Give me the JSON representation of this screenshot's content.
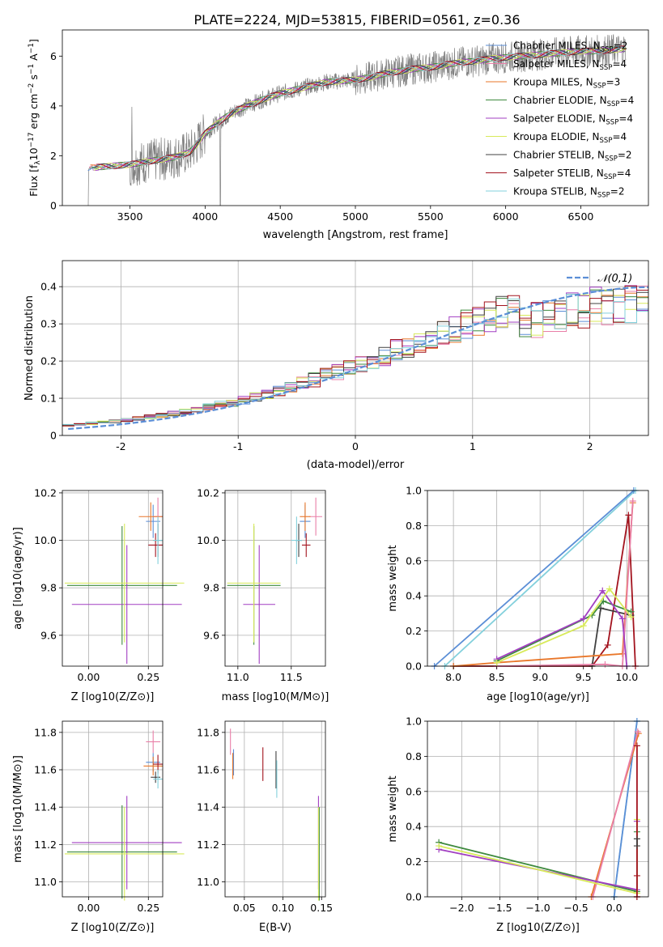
{
  "figure": {
    "title": "PLATE=2224, MJD=53815, FIBERID=0561, z=0.36",
    "label_colors": {
      "Chabrier MILES": "#5b8ed6",
      "Salpeter MILES": "#e97fa8",
      "Kroupa MILES": "#e9772a",
      "Chabrier ELODIE": "#3f8a3f",
      "Salpeter ELODIE": "#a23fc2",
      "Kroupa ELODIE": "#d8ea5a",
      "Chabrier STELIB": "#404040",
      "Salpeter STELIB": "#a3131e",
      "Kroupa STELIB": "#83d0dc",
      "data": "#808080",
      "normal": "#5b8ed6"
    }
  },
  "chart_data": [
    {
      "id": "spectrum",
      "type": "line",
      "title": "PLATE=2224, MJD=53815, FIBERID=0561, z=0.36",
      "xlabel": "wavelength [Angstrom, rest frame]",
      "ylabel": "Flux [f_λ 10^-17 erg cm^-2 s^-1 A^-1]",
      "xlim": [
        3050,
        6950
      ],
      "ylim": [
        0,
        7.05
      ],
      "xticks": [
        3500,
        4000,
        4500,
        5000,
        5500,
        6000,
        6500
      ],
      "yticks": [
        0,
        2,
        4,
        6
      ],
      "grid": false,
      "legend_position": "upper right",
      "legend": [
        {
          "name": "Chabrier MILES",
          "sup": "SSP",
          "n": "2",
          "color": "#5b8ed6"
        },
        {
          "name": "Salpeter MILES",
          "sup": "SSP",
          "n": "4",
          "color": "#e97fa8"
        },
        {
          "name": "Kroupa MILES",
          "sup": "SSP",
          "n": "3",
          "color": "#e9772a"
        },
        {
          "name": "Chabrier ELODIE",
          "sup": "SSP",
          "n": "4",
          "color": "#3f8a3f"
        },
        {
          "name": "Salpeter ELODIE",
          "sup": "SSP",
          "n": "4",
          "color": "#a23fc2"
        },
        {
          "name": "Kroupa ELODIE",
          "sup": "SSP",
          "n": "4",
          "color": "#d8ea5a"
        },
        {
          "name": "Chabrier STELIB",
          "sup": "SSP",
          "n": "2",
          "color": "#404040"
        },
        {
          "name": "Salpeter STELIB",
          "sup": "SSP",
          "n": "4",
          "color": "#a3131e"
        },
        {
          "name": "Kroupa STELIB",
          "sup": "SSP",
          "n": "2",
          "color": "#83d0dc"
        }
      ],
      "continuum": {
        "x": [
          3220,
          3300,
          3400,
          3500,
          3600,
          3700,
          3800,
          3900,
          3950,
          4000,
          4100,
          4200,
          4300,
          4400,
          4500,
          4600,
          4700,
          4800,
          4900,
          5000,
          5100,
          5200,
          5300,
          5400,
          5500,
          5600,
          5700,
          5800,
          5900,
          6000,
          6100,
          6200,
          6300,
          6400,
          6500,
          6600,
          6700,
          6800
        ],
        "y": [
          1.5,
          1.55,
          1.6,
          1.65,
          1.75,
          1.85,
          1.95,
          2.15,
          2.5,
          2.9,
          3.4,
          3.8,
          4.05,
          4.3,
          4.5,
          4.65,
          4.8,
          4.95,
          5.0,
          5.05,
          5.15,
          5.3,
          5.4,
          5.5,
          5.55,
          5.65,
          5.75,
          5.8,
          5.9,
          5.95,
          6.0,
          6.05,
          6.1,
          6.15,
          6.2,
          6.2,
          6.25,
          6.3
        ]
      }
    },
    {
      "id": "residuals",
      "type": "histogram",
      "xlabel": "(data-model)/error",
      "ylabel": "Normed distribution",
      "xlim": [
        -2.5,
        2.5
      ],
      "ylim": [
        0,
        0.47
      ],
      "xticks": [
        -2,
        -1,
        0,
        1,
        2
      ],
      "yticks": [
        0.0,
        0.1,
        0.2,
        0.3,
        0.4
      ],
      "grid": true,
      "legend_position": "upper right",
      "legend": [
        {
          "name": "𝒩(0,1)",
          "color": "#5b8ed6",
          "style": "dashed"
        }
      ],
      "bin_width": 0.1,
      "bin_start": -2.5,
      "reference": [
        0.0175,
        0.0198,
        0.0224,
        0.0252,
        0.0283,
        0.0317,
        0.0355,
        0.0396,
        0.044,
        0.0488,
        0.054,
        0.0596,
        0.0656,
        0.0721,
        0.0789,
        0.0863,
        0.094,
        0.1023,
        0.1109,
        0.12,
        0.1295,
        0.1394,
        0.1497,
        0.1604,
        0.1714,
        0.1826,
        0.1942,
        0.2059,
        0.2179,
        0.2299,
        0.242,
        0.2541,
        0.2661,
        0.278,
        0.2897,
        0.3011,
        0.3123,
        0.3229,
        0.3332,
        0.3429,
        0.3521,
        0.3605,
        0.3683,
        0.3753,
        0.3814,
        0.3867,
        0.391,
        0.3945,
        0.397,
        0.3984,
        0.3984,
        0.397,
        0.3945,
        0.391,
        0.3867,
        0.3814,
        0.3753,
        0.3683,
        0.3605,
        0.3521,
        0.3429,
        0.3332,
        0.3229,
        0.3123,
        0.3011,
        0.2897,
        0.278,
        0.2661,
        0.2541,
        0.242,
        0.2299,
        0.2179,
        0.2059,
        0.1942,
        0.1826,
        0.1714,
        0.1604,
        0.1497,
        0.1394,
        0.1295,
        0.12,
        0.1109,
        0.1023,
        0.094,
        0.0863,
        0.0789,
        0.0721,
        0.0656,
        0.0596,
        0.054,
        0.0488,
        0.044,
        0.0396,
        0.0355,
        0.0317,
        0.0283,
        0.0252,
        0.0224,
        0.0198,
        0.0175
      ]
    },
    {
      "id": "age-vs-Z",
      "type": "scatter",
      "xlabel": "Z [log10(Z/Z⊙)]",
      "ylabel": "age [log10(age/yr)]",
      "xlim": [
        -0.11,
        0.31
      ],
      "ylim": [
        9.47,
        10.21
      ],
      "xticks": [
        "0.00",
        "0.25"
      ],
      "yticks": [
        "9.6",
        "9.8",
        "10.0",
        "10.2"
      ],
      "grid": true,
      "points": [
        {
          "color": "#5b8ed6",
          "x": 0.27,
          "y": 10.08,
          "xerr": 0.03,
          "yerr": 0.07
        },
        {
          "color": "#e97fa8",
          "x": 0.29,
          "y": 10.1,
          "xerr": 0.02,
          "yerr": 0.08
        },
        {
          "color": "#e9772a",
          "x": 0.26,
          "y": 10.1,
          "xerr": 0.05,
          "yerr": 0.06
        },
        {
          "color": "#3f8a3f",
          "x": 0.14,
          "y": 9.81,
          "xerr": 0.23,
          "yerr": 0.25
        },
        {
          "color": "#a23fc2",
          "x": 0.16,
          "y": 9.73,
          "xerr": 0.23,
          "yerr": 0.25
        },
        {
          "color": "#d8ea5a",
          "x": 0.15,
          "y": 9.82,
          "xerr": 0.25,
          "yerr": 0.25
        },
        {
          "color": "#404040",
          "x": 0.29,
          "y": 10.0,
          "xerr": 0.02,
          "yerr": 0.07
        },
        {
          "color": "#a3131e",
          "x": 0.28,
          "y": 9.98,
          "xerr": 0.03,
          "yerr": 0.05
        },
        {
          "color": "#83d0dc",
          "x": 0.29,
          "y": 10.0,
          "xerr": 0.02,
          "yerr": 0.1
        }
      ]
    },
    {
      "id": "age-vs-mass",
      "type": "scatter",
      "xlabel": "mass [log10(M/M⊙)]",
      "ylabel": "",
      "xlim": [
        10.88,
        11.82
      ],
      "ylim": [
        9.47,
        10.21
      ],
      "xticks": [
        "11.0",
        "11.5"
      ],
      "yticks": [
        "9.6",
        "9.8",
        "10.0",
        "10.2"
      ],
      "grid": true,
      "points": [
        {
          "color": "#5b8ed6",
          "x": 11.63,
          "y": 10.08,
          "xerr": 0.05,
          "yerr": 0.07
        },
        {
          "color": "#e97fa8",
          "x": 11.73,
          "y": 10.1,
          "xerr": 0.06,
          "yerr": 0.08
        },
        {
          "color": "#e9772a",
          "x": 11.63,
          "y": 10.1,
          "xerr": 0.05,
          "yerr": 0.06
        },
        {
          "color": "#3f8a3f",
          "x": 11.15,
          "y": 9.81,
          "xerr": 0.25,
          "yerr": 0.25
        },
        {
          "color": "#a23fc2",
          "x": 11.2,
          "y": 9.73,
          "xerr": 0.15,
          "yerr": 0.25
        },
        {
          "color": "#d8ea5a",
          "x": 11.15,
          "y": 9.82,
          "xerr": 0.25,
          "yerr": 0.25
        },
        {
          "color": "#404040",
          "x": 11.57,
          "y": 10.0,
          "xerr": 0.03,
          "yerr": 0.07
        },
        {
          "color": "#a3131e",
          "x": 11.64,
          "y": 9.98,
          "xerr": 0.04,
          "yerr": 0.05
        },
        {
          "color": "#83d0dc",
          "x": 11.55,
          "y": 10.0,
          "xerr": 0.05,
          "yerr": 0.1
        }
      ]
    },
    {
      "id": "weight-vs-age",
      "type": "line",
      "xlabel": "age [log10(age/yr)]",
      "ylabel": "mass weight",
      "xlim": [
        7.7,
        10.25
      ],
      "ylim": [
        0,
        1.0
      ],
      "xticks": [
        "8.0",
        "8.5",
        "9.0",
        "9.5",
        "10.0"
      ],
      "yticks": [
        "0.0",
        "0.2",
        "0.4",
        "0.6",
        "0.8",
        "1.0"
      ],
      "grid": true,
      "series": [
        {
          "color": "#83d0dc",
          "x": [
            7.9,
            10.1
          ],
          "y": [
            0.0,
            1.0
          ]
        },
        {
          "color": "#5b8ed6",
          "x": [
            7.78,
            10.08
          ],
          "y": [
            0.0,
            1.0
          ]
        },
        {
          "color": "#a3131e",
          "x": [
            8.0,
            9.6,
            9.78,
            10.02,
            10.1
          ],
          "y": [
            0.0,
            0.0,
            0.12,
            0.86,
            0.0
          ]
        },
        {
          "color": "#404040",
          "x": [
            9.6,
            9.7,
            10.05
          ],
          "y": [
            0.0,
            0.33,
            0.29
          ]
        },
        {
          "color": "#e9772a",
          "x": [
            8.0,
            8.5,
            9.95,
            10.07
          ],
          "y": [
            0.0,
            0.02,
            0.07,
            0.93
          ]
        },
        {
          "color": "#e97fa8",
          "x": [
            8.5,
            9.75,
            9.95,
            10.07
          ],
          "y": [
            0.0,
            0.01,
            0.0,
            0.94
          ]
        },
        {
          "color": "#3f8a3f",
          "x": [
            8.5,
            9.6,
            9.73,
            10.05
          ],
          "y": [
            0.03,
            0.29,
            0.37,
            0.31
          ]
        },
        {
          "color": "#a23fc2",
          "x": [
            8.5,
            9.5,
            9.72,
            9.95,
            10.0
          ],
          "y": [
            0.04,
            0.27,
            0.43,
            0.27,
            0.0
          ]
        },
        {
          "color": "#d8ea5a",
          "x": [
            8.5,
            9.5,
            9.8,
            10.05
          ],
          "y": [
            0.02,
            0.23,
            0.44,
            0.28
          ]
        }
      ]
    },
    {
      "id": "mass-vs-Z",
      "type": "scatter",
      "xlabel": "Z [log10(Z/Z⊙)]",
      "ylabel": "mass [log10(M/M⊙)]",
      "xlim": [
        -0.11,
        0.31
      ],
      "ylim": [
        10.92,
        11.86
      ],
      "xticks": [
        "0.00",
        "0.25"
      ],
      "yticks": [
        "11.0",
        "11.2",
        "11.4",
        "11.6",
        "11.8"
      ],
      "grid": true,
      "points": [
        {
          "color": "#5b8ed6",
          "x": 0.27,
          "y": 11.64,
          "xerr": 0.03,
          "yerr": 0.05
        },
        {
          "color": "#e97fa8",
          "x": 0.27,
          "y": 11.75,
          "xerr": 0.03,
          "yerr": 0.06
        },
        {
          "color": "#e9772a",
          "x": 0.27,
          "y": 11.62,
          "xerr": 0.04,
          "yerr": 0.05
        },
        {
          "color": "#3f8a3f",
          "x": 0.14,
          "y": 11.16,
          "xerr": 0.23,
          "yerr": 0.25
        },
        {
          "color": "#a23fc2",
          "x": 0.16,
          "y": 11.21,
          "xerr": 0.23,
          "yerr": 0.25
        },
        {
          "color": "#d8ea5a",
          "x": 0.15,
          "y": 11.15,
          "xerr": 0.25,
          "yerr": 0.25
        },
        {
          "color": "#404040",
          "x": 0.28,
          "y": 11.56,
          "xerr": 0.02,
          "yerr": 0.03
        },
        {
          "color": "#a3131e",
          "x": 0.29,
          "y": 11.63,
          "xerr": 0.02,
          "yerr": 0.05
        },
        {
          "color": "#83d0dc",
          "x": 0.29,
          "y": 11.55,
          "xerr": 0.02,
          "yerr": 0.05
        }
      ]
    },
    {
      "id": "mass-vs-EBV",
      "type": "scatter",
      "xlabel": "E(B-V)",
      "ylabel": "",
      "xlim": [
        0.025,
        0.155
      ],
      "ylim": [
        10.92,
        11.86
      ],
      "xticks": [
        "0.05",
        "0.10",
        "0.15"
      ],
      "yticks": [
        "11.0",
        "11.2",
        "11.4",
        "11.6",
        "11.8"
      ],
      "grid": true,
      "points": [
        {
          "color": "#5b8ed6",
          "x": 0.036,
          "y": 11.64,
          "xerr": 0.0,
          "yerr": 0.07
        },
        {
          "color": "#e97fa8",
          "x": 0.032,
          "y": 11.75,
          "xerr": 0.0,
          "yerr": 0.07
        },
        {
          "color": "#e9772a",
          "x": 0.035,
          "y": 11.62,
          "xerr": 0.0,
          "yerr": 0.07
        },
        {
          "color": "#3f8a3f",
          "x": 0.147,
          "y": 11.15,
          "xerr": 0.0,
          "yerr": 0.25
        },
        {
          "color": "#a23fc2",
          "x": 0.146,
          "y": 11.21,
          "xerr": 0.0,
          "yerr": 0.25
        },
        {
          "color": "#d8ea5a",
          "x": 0.146,
          "y": 11.15,
          "xerr": 0.0,
          "yerr": 0.25
        },
        {
          "color": "#404040",
          "x": 0.091,
          "y": 11.6,
          "xerr": 0.0,
          "yerr": 0.1
        },
        {
          "color": "#a3131e",
          "x": 0.074,
          "y": 11.63,
          "xerr": 0.0,
          "yerr": 0.09
        },
        {
          "color": "#83d0dc",
          "x": 0.092,
          "y": 11.55,
          "xerr": 0.0,
          "yerr": 0.1
        }
      ]
    },
    {
      "id": "weight-vs-Z",
      "type": "line",
      "xlabel": "Z [log10(Z/Z⊙)]",
      "ylabel": "mass weight",
      "xlim": [
        -2.45,
        0.45
      ],
      "ylim": [
        0,
        1.0
      ],
      "xticks": [
        "−2.0",
        "−1.5",
        "−1.0",
        "−0.5",
        "0.0"
      ],
      "yticks": [
        "0.0",
        "0.2",
        "0.4",
        "0.6",
        "0.8",
        "1.0"
      ],
      "grid": true,
      "series": [
        {
          "color": "#83d0dc",
          "x": [
            0.0,
            0.3
          ],
          "y": [
            0.0,
            1.0
          ]
        },
        {
          "color": "#5b8ed6",
          "x": [
            0.0,
            0.3
          ],
          "y": [
            0.0,
            1.0
          ]
        },
        {
          "color": "#e9772a",
          "x": [
            -0.3,
            0.32
          ],
          "y": [
            0.0,
            0.93
          ]
        },
        {
          "color": "#e97fa8",
          "x": [
            -0.28,
            0.31
          ],
          "y": [
            0.0,
            0.94
          ]
        },
        {
          "color": "#3f8a3f",
          "x": [
            -2.3,
            0.3,
            0.3
          ],
          "y": [
            0.31,
            0.03,
            0.37
          ]
        },
        {
          "color": "#a23fc2",
          "x": [
            -2.3,
            0.3,
            0.3
          ],
          "y": [
            0.27,
            0.04,
            0.43
          ]
        },
        {
          "color": "#d8ea5a",
          "x": [
            -2.3,
            0.3,
            0.3
          ],
          "y": [
            0.29,
            0.02,
            0.44
          ]
        },
        {
          "color": "#a3131e",
          "x": [
            0.3,
            0.3,
            0.3,
            0.3
          ],
          "y": [
            0.0,
            0.12,
            0.86,
            0.0
          ]
        },
        {
          "color": "#404040",
          "x": [
            0.3,
            0.3
          ],
          "y": [
            0.29,
            0.33
          ]
        }
      ]
    }
  ]
}
